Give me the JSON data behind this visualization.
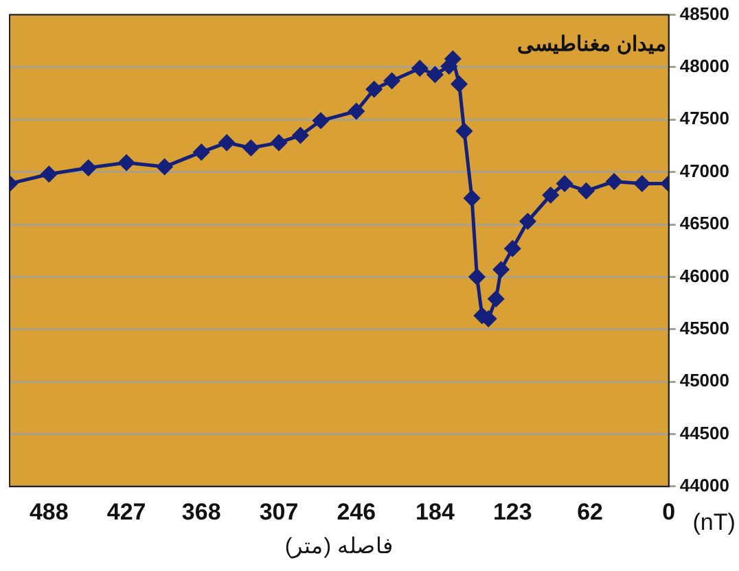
{
  "chart_data": {
    "type": "line",
    "xlabel": "فاصله (متر)",
    "ylabel": "ميدان مغناطيسی",
    "annotations": [
      "(nT)"
    ],
    "x": [
      519,
      488,
      457,
      427,
      397,
      368,
      348,
      329,
      307,
      290,
      274,
      246,
      232,
      218,
      196,
      184,
      173,
      170,
      165,
      161,
      155,
      151,
      147,
      142,
      136,
      132,
      123,
      111,
      93,
      82,
      65,
      43,
      21,
      0
    ],
    "series": [
      {
        "color": "#15207a",
        "values": [
          46890,
          46980,
          47040,
          47090,
          47050,
          47190,
          47280,
          47230,
          47280,
          47350,
          47490,
          47580,
          47790,
          47870,
          47990,
          47930,
          48010,
          48080,
          47840,
          47390,
          46750,
          46000,
          45630,
          45600,
          45790,
          46070,
          46270,
          46530,
          46780,
          46890,
          46820,
          46910,
          46890,
          46890
        ]
      }
    ],
    "xlim": [
      519,
      0
    ],
    "xticks": [
      488,
      427,
      368,
      307,
      246,
      184,
      123,
      62,
      0
    ],
    "ylim": [
      44000,
      48500
    ],
    "yticks": [
      44000,
      44500,
      45000,
      45500,
      46000,
      46500,
      47000,
      47500,
      48000,
      48500
    ],
    "grid": "y",
    "legend": false,
    "marker": "diamond",
    "line_style": "solid"
  }
}
